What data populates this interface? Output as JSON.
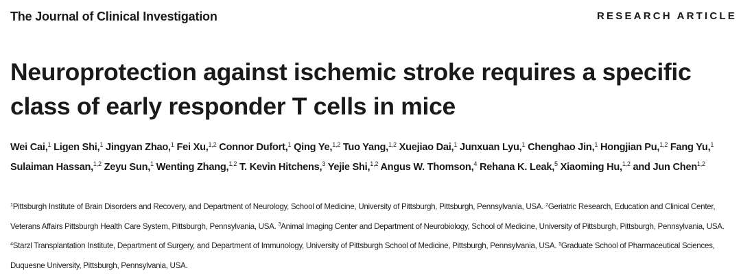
{
  "header": {
    "journal": "The Journal of Clinical Investigation",
    "section": "RESEARCH ARTICLE"
  },
  "title": "Neuroprotection against ischemic stroke requires a specific class of early responder T cells in mice",
  "authors": [
    {
      "name": "Wei Cai,",
      "sup": "1"
    },
    {
      "name": "Ligen Shi,",
      "sup": "1"
    },
    {
      "name": "Jingyan Zhao,",
      "sup": "1"
    },
    {
      "name": "Fei Xu,",
      "sup": "1,2"
    },
    {
      "name": "Connor Dufort,",
      "sup": "1"
    },
    {
      "name": "Qing Ye,",
      "sup": "1,2"
    },
    {
      "name": "Tuo Yang,",
      "sup": "1,2"
    },
    {
      "name": "Xuejiao Dai,",
      "sup": "1"
    },
    {
      "name": "Junxuan Lyu,",
      "sup": "1"
    },
    {
      "name": "Chenghao Jin,",
      "sup": "1"
    },
    {
      "name": "Hongjian Pu,",
      "sup": "1,2"
    },
    {
      "name": "Fang Yu,",
      "sup": "1"
    },
    {
      "name": "Sulaiman Hassan,",
      "sup": "1,2"
    },
    {
      "name": "Zeyu Sun,",
      "sup": "1"
    },
    {
      "name": "Wenting Zhang,",
      "sup": "1,2"
    },
    {
      "name": "T. Kevin Hitchens,",
      "sup": "3"
    },
    {
      "name": "Yejie Shi,",
      "sup": "1,2"
    },
    {
      "name": "Angus W. Thomson,",
      "sup": "4"
    },
    {
      "name": "Rehana K. Leak,",
      "sup": "5"
    },
    {
      "name": "Xiaoming Hu,",
      "sup": "1,2"
    },
    {
      "name": "and Jun Chen",
      "sup": "1,2"
    }
  ],
  "affiliations": [
    {
      "number": "1",
      "text": "Pittsburgh Institute of Brain Disorders and Recovery, and Department of Neurology, School of Medicine, University of Pittsburgh, Pittsburgh, Pennsylvania, USA."
    },
    {
      "number": "2",
      "text": "Geriatric Research, Education and Clinical Center, Veterans Affairs Pittsburgh Health Care System, Pittsburgh, Pennsylvania, USA."
    },
    {
      "number": "3",
      "text": "Animal Imaging Center and Department of Neurobiology, School of Medicine, University of Pittsburgh, Pittsburgh, Pennsylvania, USA."
    },
    {
      "number": "4",
      "text": "Starzl Transplantation Institute, Department of Surgery, and Department of Immunology, University of Pittsburgh School of Medicine, Pittsburgh, Pennsylvania, USA."
    },
    {
      "number": "5",
      "text": "Graduate School of Pharmaceutical Sciences, Duquesne University, Pittsburgh, Pennsylvania, USA."
    }
  ]
}
